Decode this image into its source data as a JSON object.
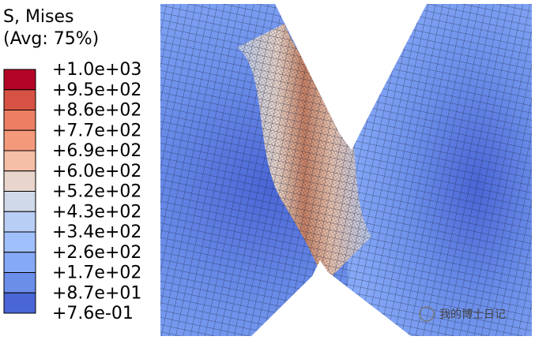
{
  "legend": {
    "title": "S, Mises",
    "subtitle": "(Avg: 75%)",
    "labels": [
      "+1.0e+03",
      "+9.5e+02",
      "+8.6e+02",
      "+7.7e+02",
      "+6.9e+02",
      "+6.0e+02",
      "+5.2e+02",
      "+4.3e+02",
      "+3.4e+02",
      "+2.6e+02",
      "+1.7e+02",
      "+8.7e+01",
      "+7.6e-01"
    ],
    "colors": [
      "#b40426",
      "#d65244",
      "#ec7f63",
      "#f49a7b",
      "#f5bea6",
      "#e8d6cd",
      "#d0d9ea",
      "#b9cef5",
      "#a0c0fd",
      "#86a9f7",
      "#6b8ee9",
      "#4a66d6"
    ]
  },
  "watermark": "我的博士日记"
}
